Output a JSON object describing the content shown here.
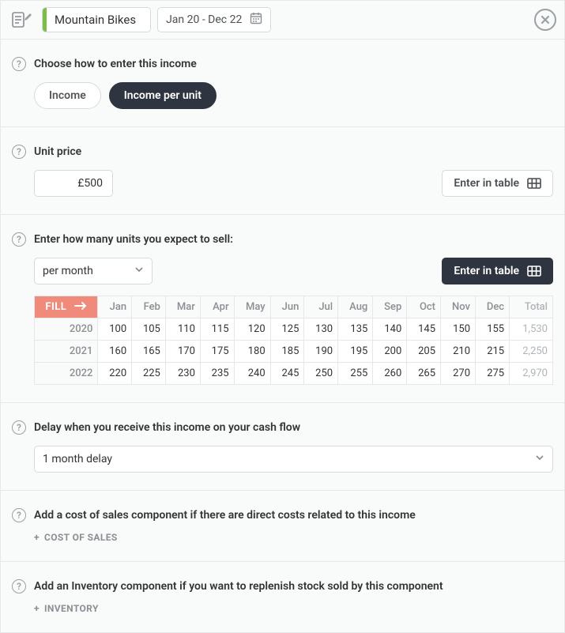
{
  "header": {
    "title": "Mountain Bikes",
    "date_range": "Jan 20 - Dec 22",
    "accent_color": "#7bc043"
  },
  "income_mode": {
    "label": "Choose how to enter this income",
    "options": {
      "income": "Income",
      "per_unit": "Income per unit"
    },
    "active": "per_unit"
  },
  "unit_price": {
    "label": "Unit price",
    "value": "£500",
    "enter_in_table": "Enter in table"
  },
  "units": {
    "label": "Enter how many units you expect to sell:",
    "frequency": "per month",
    "enter_in_table": "Enter in table",
    "fill_label": "FILL",
    "months": [
      "Jan",
      "Feb",
      "Mar",
      "Apr",
      "May",
      "Jun",
      "Jul",
      "Aug",
      "Sep",
      "Oct",
      "Nov",
      "Dec"
    ],
    "total_label": "Total",
    "rows": [
      {
        "year": "2020",
        "values": [
          100,
          105,
          110,
          115,
          120,
          125,
          130,
          135,
          140,
          145,
          150,
          155
        ],
        "total": "1,530"
      },
      {
        "year": "2021",
        "values": [
          160,
          165,
          170,
          175,
          180,
          185,
          190,
          195,
          200,
          205,
          210,
          215
        ],
        "total": "2,250"
      },
      {
        "year": "2022",
        "values": [
          220,
          225,
          230,
          235,
          240,
          245,
          250,
          255,
          260,
          265,
          270,
          275
        ],
        "total": "2,970"
      }
    ]
  },
  "delay": {
    "label": "Delay when you receive this income on your cash flow",
    "value": "1 month delay"
  },
  "cost_of_sales": {
    "label": "Add a cost of sales component if there are direct costs related to this income",
    "link": "COST OF SALES"
  },
  "inventory": {
    "label": "Add an Inventory component if you want to replenish stock sold by this component",
    "link": "INVENTORY"
  },
  "colors": {
    "dark": "#2e3440",
    "fill": "#f08a7a",
    "border": "#e5e7e9",
    "muted": "#8a8f93"
  }
}
